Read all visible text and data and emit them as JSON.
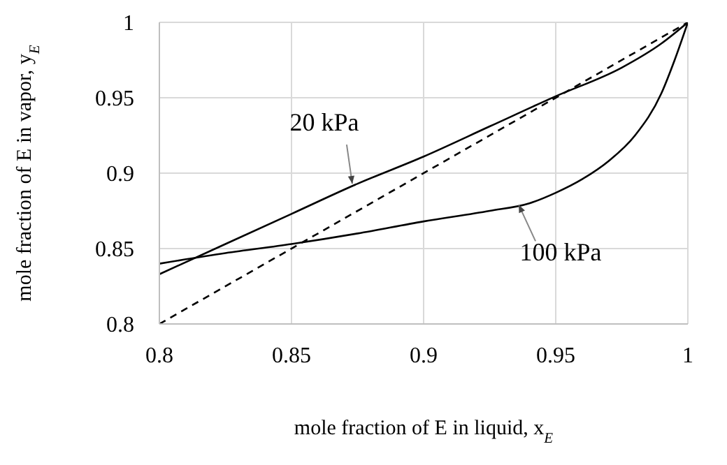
{
  "chart_data": {
    "type": "line",
    "xlabel": "mole fraction of E in liquid, x$_{E}$",
    "ylabel": "mole fraction of E in vapor, y$_{E}$",
    "xlim": [
      0.8,
      1
    ],
    "xticks": [
      0.8,
      0.85,
      0.9,
      0.95,
      1
    ],
    "ylim": [
      0.8,
      1
    ],
    "yticks": [
      0.8,
      0.85,
      0.9,
      0.95,
      1
    ],
    "grid": true,
    "series": [
      {
        "color": "#000000",
        "line_style": "solid",
        "x": [
          0.8,
          0.825,
          0.85,
          0.875,
          0.9,
          0.925,
          0.95,
          0.975,
          0.99,
          1
        ],
        "values": [
          0.833,
          0.853,
          0.873,
          0.893,
          0.911,
          0.931,
          0.951,
          0.97,
          0.986,
          1
        ]
      },
      {
        "color": "#000000",
        "line_style": "solid",
        "x": [
          0.8,
          0.825,
          0.85,
          0.875,
          0.9,
          0.925,
          0.94,
          0.95,
          0.96,
          0.97,
          0.98,
          0.99,
          0.995,
          1
        ],
        "values": [
          0.84,
          0.847,
          0.853,
          0.86,
          0.868,
          0.875,
          0.88,
          0.887,
          0.896,
          0.908,
          0.925,
          0.953,
          0.975,
          1
        ]
      },
      {
        "color": "#000000",
        "line_style": "dashed",
        "x": [
          0.8,
          1
        ],
        "values": [
          0.8,
          1
        ]
      }
    ],
    "annotations": [
      {
        "text": "20 kPa",
        "x": 0.873,
        "y": 0.893
      },
      {
        "text": "100 kPa",
        "x": 0.936,
        "y": 0.879
      }
    ]
  }
}
